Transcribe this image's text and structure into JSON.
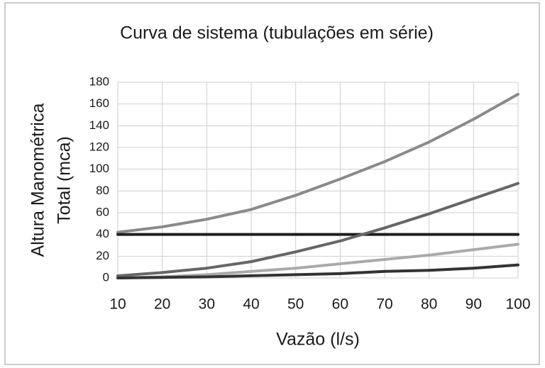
{
  "chart_data": {
    "type": "line",
    "title": "Curva de sistema (tubulações em série)",
    "xlabel": "Vazão (l/s)",
    "ylabel": [
      "Altura Manométrica",
      "Total (mca)"
    ],
    "x": [
      10,
      20,
      30,
      40,
      50,
      60,
      70,
      80,
      90,
      100
    ],
    "series": [
      {
        "color": "#8a8a8a",
        "values": [
          42,
          47,
          54,
          63,
          76,
          91,
          107,
          125,
          146,
          169
        ]
      },
      {
        "color": "#1e1e1e",
        "values": [
          40,
          40,
          40,
          40,
          40,
          40,
          40,
          40,
          40,
          40
        ]
      },
      {
        "color": "#666666",
        "values": [
          2,
          5,
          9,
          15,
          24,
          34,
          46,
          59,
          73,
          87
        ]
      },
      {
        "color": "#aaaaaa",
        "values": [
          0,
          1,
          3,
          6,
          9,
          13,
          17,
          21,
          26,
          31
        ]
      },
      {
        "color": "#333333",
        "values": [
          0,
          0.5,
          1,
          2,
          3,
          4,
          6,
          7,
          9,
          12
        ]
      }
    ],
    "xlim": [
      10,
      100
    ],
    "xticks": [
      10,
      20,
      30,
      40,
      50,
      60,
      70,
      80,
      90,
      100
    ],
    "ylim": [
      0,
      180
    ],
    "yticks": [
      0,
      20,
      40,
      60,
      80,
      100,
      120,
      140,
      160,
      180
    ],
    "grid": true
  }
}
